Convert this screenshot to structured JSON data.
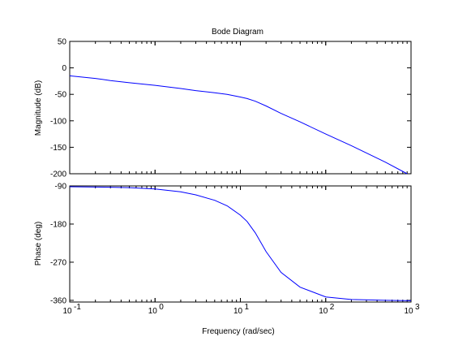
{
  "chart_data": {
    "type": "line",
    "title": "Bode Diagram",
    "xlabel": "Frequency  (rad/sec)",
    "x_scale": "log",
    "xlim": [
      0.1,
      1000
    ],
    "x_tick_values": [
      0.1,
      1,
      10,
      100,
      1000
    ],
    "x_tick_labels": [
      {
        "base": "10",
        "exp": "-1"
      },
      {
        "base": "10",
        "exp": "0"
      },
      {
        "base": "10",
        "exp": "1"
      },
      {
        "base": "10",
        "exp": "2"
      },
      {
        "base": "10",
        "exp": "3"
      }
    ],
    "line_color": "#0000ff",
    "grid": false,
    "panels": [
      {
        "id": "magnitude",
        "ylabel": "Magnitude (dB)",
        "ylim": [
          -200,
          50
        ],
        "yticks": [
          50,
          0,
          -50,
          -100,
          -150,
          -200
        ],
        "series": [
          {
            "x": [
              0.1,
              0.2,
              0.3,
              0.5,
              1,
              2,
              3,
              5,
              7,
              10,
              12,
              15,
              20,
              30,
              50,
              100,
              200,
              500,
              900
            ],
            "y": [
              -15,
              -20,
              -24,
              -28,
              -33,
              -39,
              -43,
              -47,
              -50,
              -55,
              -58,
              -63,
              -72,
              -86,
              -102,
              -125,
              -147,
              -178,
              -200
            ]
          }
        ]
      },
      {
        "id": "phase",
        "ylabel": "Phase (deg)",
        "ylim": [
          -364,
          -90
        ],
        "yticks": [
          -90,
          -180,
          -270,
          -360
        ],
        "series": [
          {
            "x": [
              0.1,
              0.3,
              0.5,
              1,
              2,
              3,
              5,
              7,
              10,
              12,
              15,
              20,
              30,
              50,
              100,
              200,
              500,
              1000
            ],
            "y": [
              -92,
              -93,
              -94,
              -97,
              -104,
              -111,
              -124,
              -137,
              -159,
              -174,
              -201,
              -245,
              -294,
              -329,
              -352,
              -358,
              -360,
              -361
            ]
          }
        ]
      }
    ]
  }
}
